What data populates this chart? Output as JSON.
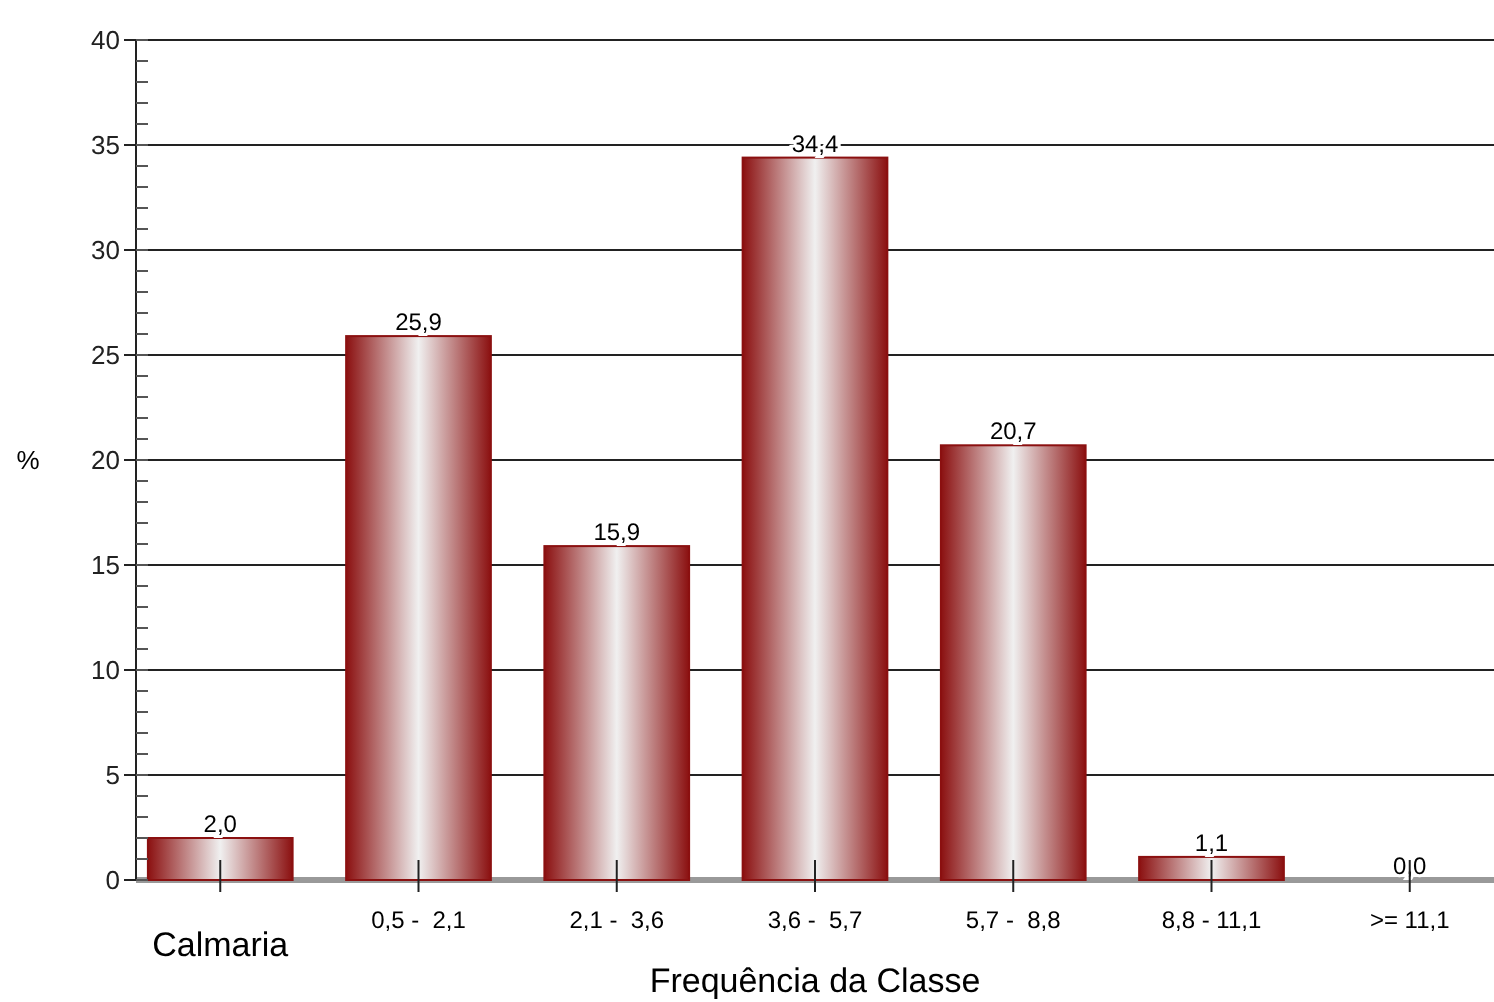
{
  "chart_data": {
    "type": "bar",
    "xlabel": "Frequência da Classe",
    "ylabel": "%",
    "categories": [
      "Calmaria",
      "0,5 -  2,1",
      "2,1 -  3,6",
      "3,6 -  5,7",
      "5,7 -  8,8",
      "8,8 - 11,1",
      ">= 11,1"
    ],
    "values": [
      2.0,
      25.9,
      15.9,
      34.4,
      20.7,
      1.1,
      0.0
    ],
    "value_labels": [
      "2,0",
      "25,9",
      "15,9",
      "34,4",
      "20,7",
      "1,1",
      "0,0"
    ],
    "color": "#8b1010",
    "ylim": [
      0,
      40
    ],
    "yticks": [
      0,
      5,
      10,
      15,
      20,
      25,
      30,
      35,
      40
    ],
    "grid": "y"
  }
}
